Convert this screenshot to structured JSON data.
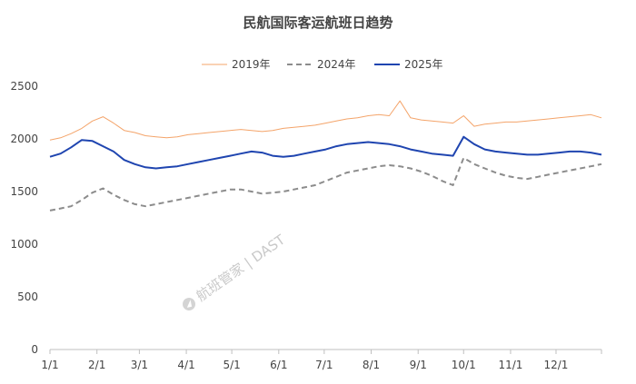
{
  "chart_data": {
    "type": "line",
    "title": "民航国际客运航班日趋势",
    "watermark": "航班管家 | DAST",
    "xlabel": "",
    "ylabel": "",
    "ylim": [
      0,
      2500
    ],
    "yticks": [
      0,
      500,
      1000,
      1500,
      2000,
      2500
    ],
    "grid": false,
    "legend_position": "top-center",
    "x_ticks": [
      "1/1",
      "2/1",
      "3/1",
      "4/1",
      "5/1",
      "6/1",
      "7/1",
      "8/1",
      "9/1",
      "10/1",
      "11/1",
      "12/1"
    ],
    "colors": {
      "2019年": "#f4a46a",
      "2024年": "#8c8c8c",
      "2025年": "#1f45b0",
      "axis": "#bfbfbf",
      "text": "#444444"
    },
    "series": [
      {
        "name": "2019年",
        "style": "solid",
        "x": [
          "1/1",
          "1/8",
          "1/15",
          "1/22",
          "1/29",
          "2/5",
          "2/12",
          "2/19",
          "2/26",
          "3/5",
          "3/12",
          "3/19",
          "3/26",
          "4/2",
          "4/9",
          "4/16",
          "4/23",
          "4/30",
          "5/7",
          "5/14",
          "5/21",
          "5/28",
          "6/4",
          "6/11",
          "6/18",
          "6/25",
          "7/2",
          "7/9",
          "7/16",
          "7/23",
          "7/30",
          "8/6",
          "8/13",
          "8/20",
          "8/27",
          "9/3",
          "9/10",
          "9/17",
          "9/24",
          "10/1",
          "10/8",
          "10/15",
          "10/22",
          "10/29",
          "11/5",
          "11/12",
          "11/19",
          "11/26",
          "12/3",
          "12/10",
          "12/17",
          "12/24",
          "12/31"
        ],
        "values": [
          1990,
          2010,
          2050,
          2100,
          2170,
          2210,
          2150,
          2080,
          2060,
          2030,
          2020,
          2010,
          2020,
          2040,
          2050,
          2060,
          2070,
          2080,
          2090,
          2080,
          2070,
          2080,
          2100,
          2110,
          2120,
          2130,
          2150,
          2170,
          2190,
          2200,
          2220,
          2230,
          2220,
          2360,
          2200,
          2180,
          2170,
          2160,
          2150,
          2220,
          2120,
          2140,
          2150,
          2160,
          2160,
          2170,
          2180,
          2190,
          2200,
          2210,
          2220,
          2230,
          2200
        ]
      },
      {
        "name": "2024年",
        "style": "dashed",
        "x": [
          "1/1",
          "1/8",
          "1/15",
          "1/22",
          "1/29",
          "2/5",
          "2/12",
          "2/19",
          "2/26",
          "3/5",
          "3/12",
          "3/19",
          "3/26",
          "4/2",
          "4/9",
          "4/16",
          "4/23",
          "4/30",
          "5/7",
          "5/14",
          "5/21",
          "5/28",
          "6/4",
          "6/11",
          "6/18",
          "6/25",
          "7/2",
          "7/9",
          "7/16",
          "7/23",
          "7/30",
          "8/6",
          "8/13",
          "8/20",
          "8/27",
          "9/3",
          "9/10",
          "9/17",
          "9/24",
          "10/1",
          "10/8",
          "10/15",
          "10/22",
          "10/29",
          "11/5",
          "11/12",
          "11/19",
          "11/26",
          "12/3",
          "12/10",
          "12/17",
          "12/24",
          "12/31"
        ],
        "values": [
          1320,
          1340,
          1360,
          1420,
          1490,
          1530,
          1470,
          1420,
          1380,
          1360,
          1380,
          1400,
          1420,
          1440,
          1460,
          1480,
          1500,
          1520,
          1520,
          1500,
          1480,
          1490,
          1500,
          1520,
          1540,
          1560,
          1600,
          1640,
          1680,
          1700,
          1720,
          1740,
          1750,
          1740,
          1720,
          1690,
          1650,
          1600,
          1560,
          1820,
          1760,
          1720,
          1680,
          1650,
          1630,
          1620,
          1640,
          1660,
          1680,
          1700,
          1720,
          1740,
          1760
        ]
      },
      {
        "name": "2025年",
        "style": "solid",
        "x": [
          "1/1",
          "1/8",
          "1/15",
          "1/22",
          "1/29",
          "2/5",
          "2/12",
          "2/19",
          "2/26",
          "3/5",
          "3/12",
          "3/19",
          "3/26",
          "4/2",
          "4/9",
          "4/16",
          "4/23",
          "4/30",
          "5/7",
          "5/14",
          "5/21",
          "5/28",
          "6/4",
          "6/11",
          "6/18",
          "6/25",
          "7/2",
          "7/9",
          "7/16",
          "7/23",
          "7/30",
          "8/6",
          "8/13",
          "8/20",
          "8/27",
          "9/3",
          "9/10",
          "9/17",
          "9/24",
          "10/1",
          "10/8",
          "10/15",
          "10/22",
          "10/29",
          "11/5",
          "11/12",
          "11/19",
          "11/26",
          "12/3",
          "12/10",
          "12/17",
          "12/24",
          "12/31"
        ],
        "values": [
          1830,
          1860,
          1920,
          1990,
          1980,
          1930,
          1880,
          1800,
          1760,
          1730,
          1720,
          1730,
          1740,
          1760,
          1780,
          1800,
          1820,
          1840,
          1860,
          1880,
          1870,
          1840,
          1830,
          1840,
          1860,
          1880,
          1900,
          1930,
          1950,
          1960,
          1970,
          1960,
          1950,
          1930,
          1900,
          1880,
          1860,
          1850,
          1840,
          2020,
          1950,
          1900,
          1880,
          1870,
          1860,
          1850,
          1850,
          1860,
          1870,
          1880,
          1880,
          1870,
          1850
        ]
      }
    ]
  }
}
